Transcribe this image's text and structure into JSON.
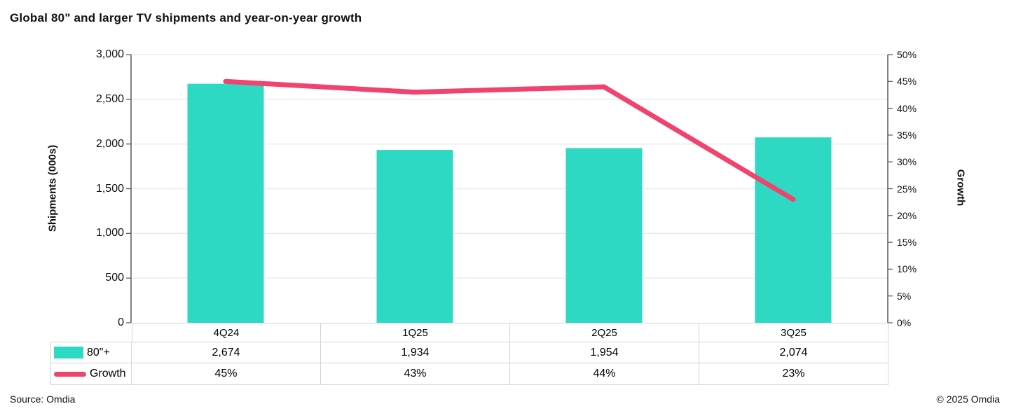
{
  "chart_data": {
    "type": "bar+line",
    "title": "Global 80\" and larger TV shipments and year-on-year growth",
    "categories": [
      "4Q24",
      "1Q25",
      "2Q25",
      "3Q25"
    ],
    "series": [
      {
        "name": "80\"+",
        "type": "bar",
        "axis": "left",
        "values": [
          2674,
          1934,
          1954,
          2074
        ],
        "labels": [
          "2,674",
          "1,934",
          "1,954",
          "2,074"
        ],
        "color": "#2ED9C4"
      },
      {
        "name": "Growth",
        "type": "line",
        "axis": "right",
        "values": [
          0.45,
          0.43,
          0.44,
          0.23
        ],
        "labels": [
          "45%",
          "43%",
          "44%",
          "23%"
        ],
        "color": "#F0436E"
      }
    ],
    "axes": {
      "left": {
        "title": "Shipments (000s)",
        "min": 0,
        "max": 3000,
        "ticks": [
          "3,000",
          "2,500",
          "2,000",
          "1,500",
          "1,000",
          "500",
          "0"
        ]
      },
      "right": {
        "title": "Growth",
        "min": 0,
        "max": 0.5,
        "ticks": [
          "50%",
          "45%",
          "40%",
          "35%",
          "30%",
          "25%",
          "20%",
          "15%",
          "10%",
          "5%",
          "0%"
        ]
      }
    },
    "grid": true,
    "legend_position": "table-left",
    "colors": {
      "bar": "#2ED9C4",
      "line": "#F0436E",
      "gridline": "#E9E9E9",
      "axis_line": "#595959",
      "table_border": "#D4D4D4"
    }
  },
  "footer": {
    "source": "Source: Omdia",
    "copyright": "© 2025 Omdia"
  }
}
